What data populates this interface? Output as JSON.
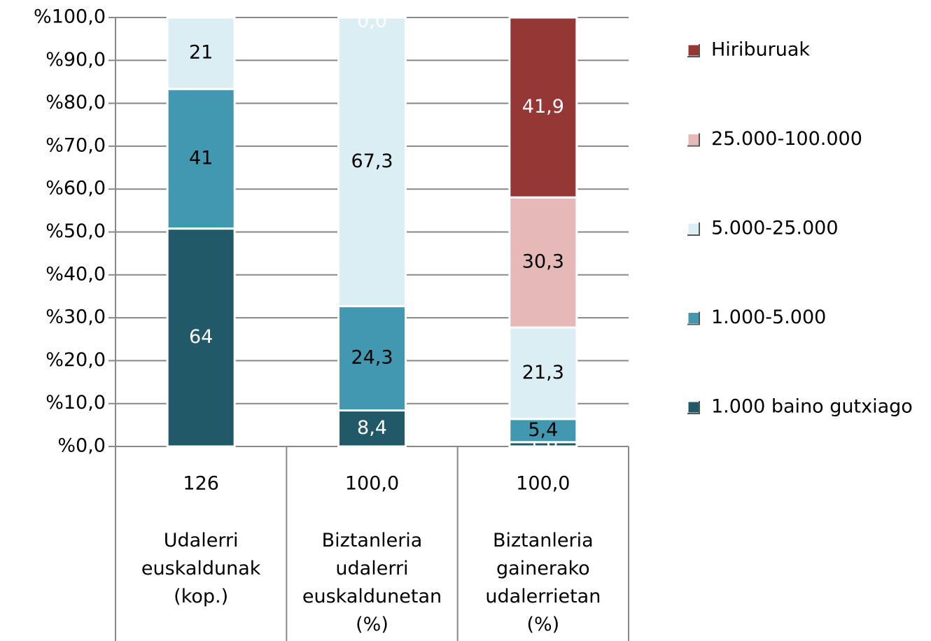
{
  "chart_data": {
    "type": "bar",
    "stacking": "percent",
    "categories": [
      "Udalerri\neuskaldunak\n(kop.)",
      "Biztanleria\nudalerri\neuskaldunetan\n(%)",
      "Biztanleria\ngainerako\nudalerrietan\n(%)"
    ],
    "totals": [
      126,
      100,
      100
    ],
    "totals_labels": [
      "126",
      "100,0",
      "100,0"
    ],
    "series": [
      {
        "name": "1.000 baino gutxiago",
        "color": "#215968",
        "label_color": "#ffffff",
        "values": [
          64,
          8.4,
          1.0
        ],
        "value_labels": [
          "64",
          "8,4",
          "1,0"
        ]
      },
      {
        "name": "1.000-5.000",
        "color": "#4198b0",
        "label_color": "#000000",
        "values": [
          41,
          24.3,
          5.4
        ],
        "value_labels": [
          "41",
          "24,3",
          "5,4"
        ]
      },
      {
        "name": "5.000-25.000",
        "color": "#dbeef4",
        "label_color": "#000000",
        "values": [
          21,
          67.3,
          21.3
        ],
        "value_labels": [
          "21",
          "67,3",
          "21,3"
        ]
      },
      {
        "name": "25.000-100.000",
        "color": "#e6b8b8",
        "label_color": "#000000",
        "values": [
          null,
          0.0,
          30.3
        ],
        "value_labels": [
          null,
          "0,0",
          "30,3"
        ]
      },
      {
        "name": "Hiriburuak",
        "color": "#953735",
        "label_color": "#ffffff",
        "values": [
          null,
          null,
          41.9
        ],
        "value_labels": [
          null,
          null,
          "41,9"
        ]
      }
    ],
    "ylim": [
      0,
      100
    ],
    "yticks": [
      {
        "value": 0,
        "label": "%0,0"
      },
      {
        "value": 10,
        "label": "%10,0"
      },
      {
        "value": 20,
        "label": "%20,0"
      },
      {
        "value": 30,
        "label": "%30,0"
      },
      {
        "value": 40,
        "label": "%40,0"
      },
      {
        "value": 50,
        "label": "%50,0"
      },
      {
        "value": 60,
        "label": "%60,0"
      },
      {
        "value": 70,
        "label": "%70,0"
      },
      {
        "value": 80,
        "label": "%80,0"
      },
      {
        "value": 90,
        "label": "%90,0"
      },
      {
        "value": 100,
        "label": "%100,0"
      }
    ],
    "grid": true,
    "legend": "right"
  }
}
